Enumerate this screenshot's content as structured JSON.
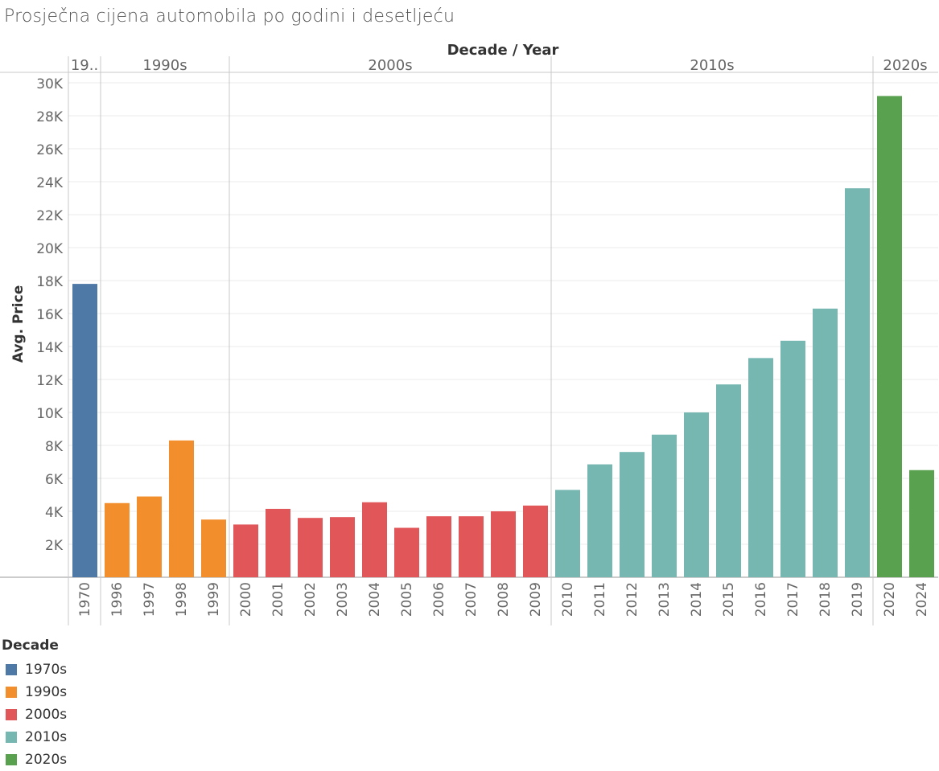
{
  "title": "Prosječna cijena automobila po godini i desetljeću",
  "chart_data": {
    "type": "bar",
    "title": "Prosječna cijena automobila po godini i desetljeću",
    "xlabel": "Decade / Year",
    "ylabel": "Avg. Price",
    "ylim": [
      0,
      30000
    ],
    "y_ticks": [
      2000,
      4000,
      6000,
      8000,
      10000,
      12000,
      14000,
      16000,
      18000,
      20000,
      22000,
      24000,
      26000,
      28000,
      30000
    ],
    "y_tick_labels": [
      "2K",
      "4K",
      "6K",
      "8K",
      "10K",
      "12K",
      "14K",
      "16K",
      "18K",
      "20K",
      "22K",
      "24K",
      "26K",
      "28K",
      "30K"
    ],
    "grid": true,
    "legend_position": "bottom-left",
    "decade_groups": [
      {
        "name": "1970s",
        "header_label": "19..",
        "color": "#4e79a7",
        "years": [
          "1970"
        ],
        "values": [
          17800
        ]
      },
      {
        "name": "1990s",
        "header_label": "1990s",
        "color": "#f28e2b",
        "years": [
          "1996",
          "1997",
          "1998",
          "1999"
        ],
        "values": [
          4500,
          4900,
          8300,
          3500
        ]
      },
      {
        "name": "2000s",
        "header_label": "2000s",
        "color": "#e15759",
        "years": [
          "2000",
          "2001",
          "2002",
          "2003",
          "2004",
          "2005",
          "2006",
          "2007",
          "2008",
          "2009"
        ],
        "values": [
          3200,
          4150,
          3600,
          3650,
          4550,
          3000,
          3700,
          3700,
          4000,
          4350
        ]
      },
      {
        "name": "2010s",
        "header_label": "2010s",
        "color": "#76b7b2",
        "years": [
          "2010",
          "2011",
          "2012",
          "2013",
          "2014",
          "2015",
          "2016",
          "2017",
          "2018",
          "2019"
        ],
        "values": [
          5300,
          6850,
          7600,
          8650,
          10000,
          11700,
          13300,
          14350,
          16300,
          23600
        ]
      },
      {
        "name": "2020s",
        "header_label": "2020s",
        "color": "#59a14f",
        "years": [
          "2020",
          "2024"
        ],
        "values": [
          29200,
          6500
        ]
      }
    ]
  },
  "legend": {
    "title": "Decade",
    "items": [
      {
        "label": "1970s",
        "color": "#4e79a7"
      },
      {
        "label": "1990s",
        "color": "#f28e2b"
      },
      {
        "label": "2000s",
        "color": "#e15759"
      },
      {
        "label": "2010s",
        "color": "#76b7b2"
      },
      {
        "label": "2020s",
        "color": "#59a14f"
      }
    ]
  }
}
